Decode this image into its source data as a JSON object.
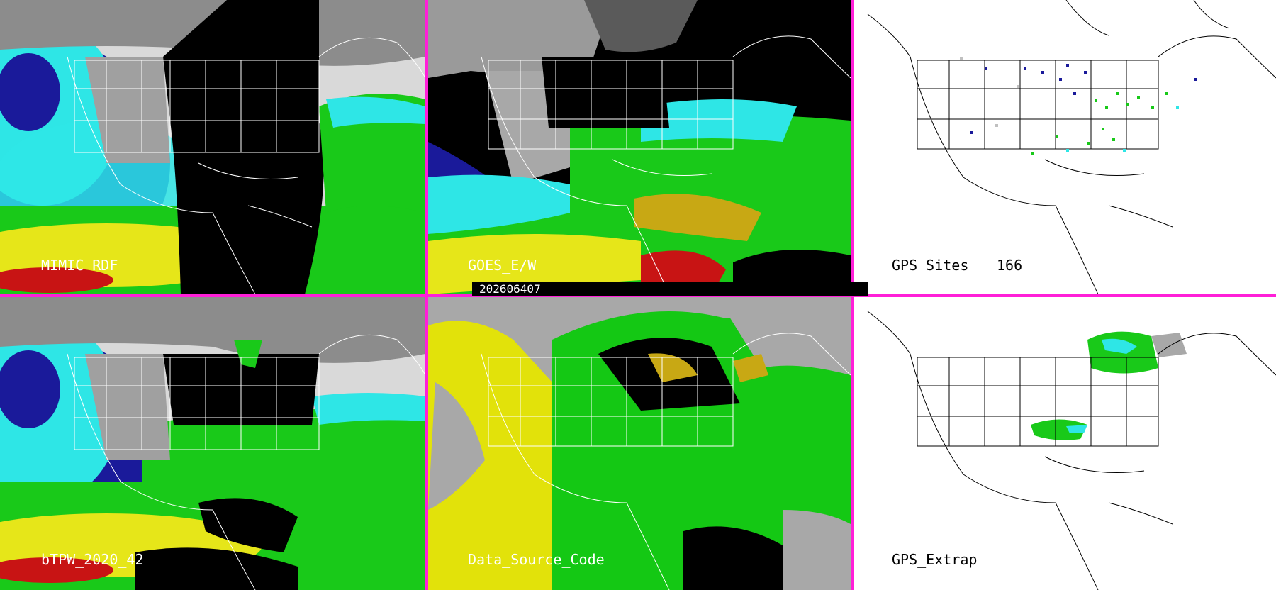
{
  "timestamp": "202606407",
  "panels": [
    {
      "id": "mimic",
      "label": "MIMIC RDF",
      "kind": "satellite"
    },
    {
      "id": "goes",
      "label": "GOES_E/W",
      "kind": "satellite"
    },
    {
      "id": "gps-sites",
      "label": "GPS Sites",
      "count": "166",
      "kind": "sites"
    },
    {
      "id": "btpw",
      "label": "bTPW_2020_42",
      "kind": "satellite"
    },
    {
      "id": "source",
      "label": "Data_Source_Code",
      "kind": "source"
    },
    {
      "id": "gps-extrap",
      "label": "GPS_Extrap",
      "kind": "extrap"
    }
  ],
  "colors": {
    "divider": "#ff1fd8",
    "very_dry": "#c0c0c0",
    "dry": "#1a1a9a",
    "moist": "#2ee6e6",
    "moister": "#19c919",
    "wet": "#e6e619",
    "very_wet": "#c81414",
    "missing": "#000000",
    "source_gray": "#a8a8a8",
    "source_yellow": "#e2e20a",
    "source_green": "#14c814"
  }
}
